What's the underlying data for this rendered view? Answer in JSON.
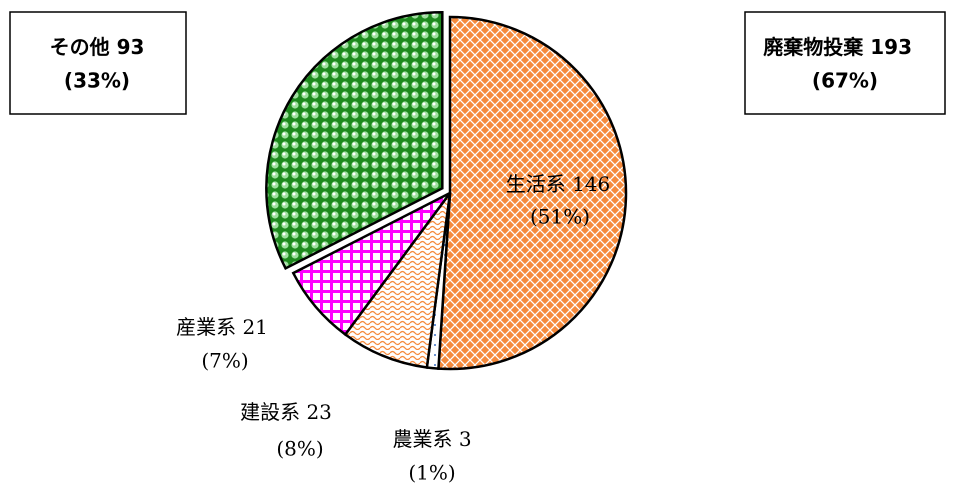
{
  "chart_data": {
    "type": "pie",
    "categories": [
      "生活系",
      "農業系",
      "建設系",
      "産業系",
      "その他"
    ],
    "values": [
      146,
      3,
      23,
      21,
      93
    ],
    "percent_labels": [
      "(51%)",
      "(1%)",
      "(8%)",
      "(7%)",
      "(33%)"
    ],
    "colors": [
      "#f58a3c",
      "#3a6fc4",
      "#f58a3c",
      "#ff00ff",
      "#1f8a1f"
    ],
    "patterns": [
      "crosshatch",
      "dots",
      "wave",
      "grid",
      "spheres"
    ],
    "exploded": [
      false,
      false,
      false,
      false,
      true
    ],
    "group": {
      "label": "廃棄物投棄",
      "value": 193,
      "percent_label": "(67%)"
    }
  }
}
